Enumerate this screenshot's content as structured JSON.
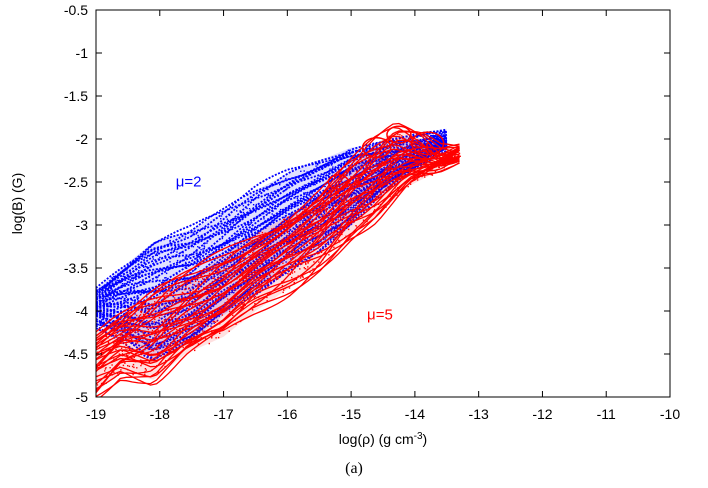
{
  "chart_data": {
    "type": "scatter",
    "title": "",
    "xlabel": {
      "main": "log(ρ) (g cm",
      "sup": "-3",
      "tail": ")"
    },
    "ylabel": "log(B) (G)",
    "xlim": [
      -19,
      -10
    ],
    "ylim": [
      -5,
      -0.5
    ],
    "xticks": [
      "-19",
      "-18",
      "-17",
      "-16",
      "-15",
      "-14",
      "-13",
      "-12",
      "-11",
      "-10"
    ],
    "yticks": [
      "-5",
      "-4.5",
      "-4",
      "-3.5",
      "-3",
      "-2.5",
      "-2",
      "-1.5",
      "-1",
      "-0.5"
    ],
    "grid": false,
    "annotations": [
      {
        "text": "μ=2",
        "x": -17.75,
        "y": -2.55,
        "color": "#0000ff"
      },
      {
        "text": "μ=5",
        "x": -14.75,
        "y": -4.1,
        "color": "#ff0000"
      }
    ],
    "series": [
      {
        "color": "#0000ff",
        "upper_edge": [
          [
            -19.0,
            -3.75
          ],
          [
            -18.6,
            -3.5
          ],
          [
            -18.1,
            -3.2
          ],
          [
            -17.5,
            -3.05
          ],
          [
            -17.0,
            -2.85
          ],
          [
            -16.5,
            -2.6
          ],
          [
            -16.0,
            -2.4
          ],
          [
            -15.5,
            -2.25
          ],
          [
            -15.0,
            -2.1
          ],
          [
            -14.5,
            -2.05
          ],
          [
            -14.0,
            -2.0
          ],
          [
            -13.5,
            -1.95
          ]
        ],
        "lower_edge": [
          [
            -19.0,
            -4.15
          ],
          [
            -18.6,
            -4.3
          ],
          [
            -18.1,
            -4.55
          ],
          [
            -17.5,
            -4.35
          ],
          [
            -17.0,
            -4.05
          ],
          [
            -16.5,
            -3.8
          ],
          [
            -16.0,
            -3.5
          ],
          [
            -15.5,
            -3.25
          ],
          [
            -15.0,
            -2.95
          ],
          [
            -14.5,
            -2.6
          ],
          [
            -14.0,
            -2.35
          ],
          [
            -13.5,
            -2.1
          ]
        ],
        "stripes": 44
      },
      {
        "color": "#ff0000",
        "upper_edge": [
          [
            -19.0,
            -4.25
          ],
          [
            -18.5,
            -4.05
          ],
          [
            -18.0,
            -3.8
          ],
          [
            -17.5,
            -3.6
          ],
          [
            -17.0,
            -3.35
          ],
          [
            -16.5,
            -3.1
          ],
          [
            -16.0,
            -2.9
          ],
          [
            -15.5,
            -2.65
          ],
          [
            -15.0,
            -2.3
          ],
          [
            -14.6,
            -2.05
          ],
          [
            -14.3,
            -1.9
          ],
          [
            -13.9,
            -2.0
          ],
          [
            -13.6,
            -2.15
          ],
          [
            -13.3,
            -2.15
          ]
        ],
        "lower_edge": [
          [
            -19.0,
            -4.95
          ],
          [
            -18.6,
            -4.7
          ],
          [
            -18.1,
            -4.8
          ],
          [
            -17.6,
            -4.5
          ],
          [
            -17.0,
            -4.3
          ],
          [
            -16.5,
            -4.0
          ],
          [
            -16.0,
            -3.75
          ],
          [
            -15.5,
            -3.45
          ],
          [
            -15.0,
            -3.1
          ],
          [
            -14.6,
            -2.9
          ],
          [
            -14.1,
            -2.55
          ],
          [
            -13.7,
            -2.4
          ],
          [
            -13.3,
            -2.2
          ]
        ],
        "stripes": 30
      }
    ]
  },
  "caption": "(a)"
}
